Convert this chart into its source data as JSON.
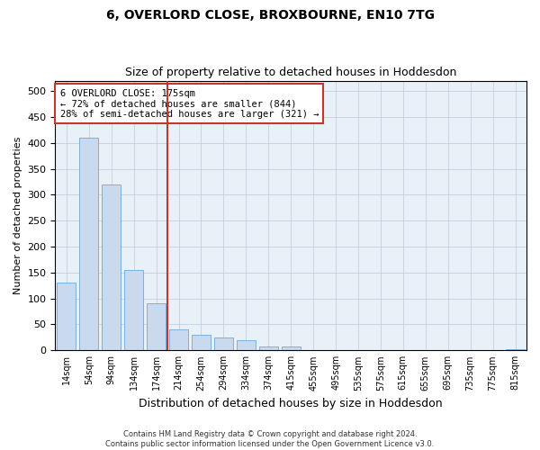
{
  "title": "6, OVERLORD CLOSE, BROXBOURNE, EN10 7TG",
  "subtitle": "Size of property relative to detached houses in Hoddesdon",
  "xlabel": "Distribution of detached houses by size in Hoddesdon",
  "ylabel": "Number of detached properties",
  "property_label": "6 OVERLORD CLOSE: 175sqm",
  "annotation_line1": "← 72% of detached houses are smaller (844)",
  "annotation_line2": "28% of semi-detached houses are larger (321) →",
  "footer_line1": "Contains HM Land Registry data © Crown copyright and database right 2024.",
  "footer_line2": "Contains public sector information licensed under the Open Government Licence v3.0.",
  "bin_labels": [
    "14sqm",
    "54sqm",
    "94sqm",
    "134sqm",
    "174sqm",
    "214sqm",
    "254sqm",
    "294sqm",
    "334sqm",
    "374sqm",
    "415sqm",
    "455sqm",
    "495sqm",
    "535sqm",
    "575sqm",
    "615sqm",
    "655sqm",
    "695sqm",
    "735sqm",
    "775sqm",
    "815sqm"
  ],
  "bar_values": [
    130,
    410,
    320,
    155,
    90,
    40,
    30,
    25,
    20,
    8,
    8,
    0,
    0,
    0,
    0,
    0,
    0,
    0,
    0,
    0,
    2
  ],
  "bar_color": "#c9d9ee",
  "bar_edge_color": "#6fa8d8",
  "vline_color": "#c0392b",
  "ylim": [
    0,
    520
  ],
  "yticks": [
    0,
    50,
    100,
    150,
    200,
    250,
    300,
    350,
    400,
    450,
    500
  ],
  "background_color": "#ffffff",
  "plot_bg_color": "#e8f0f8",
  "grid_color": "#c0c8d8"
}
